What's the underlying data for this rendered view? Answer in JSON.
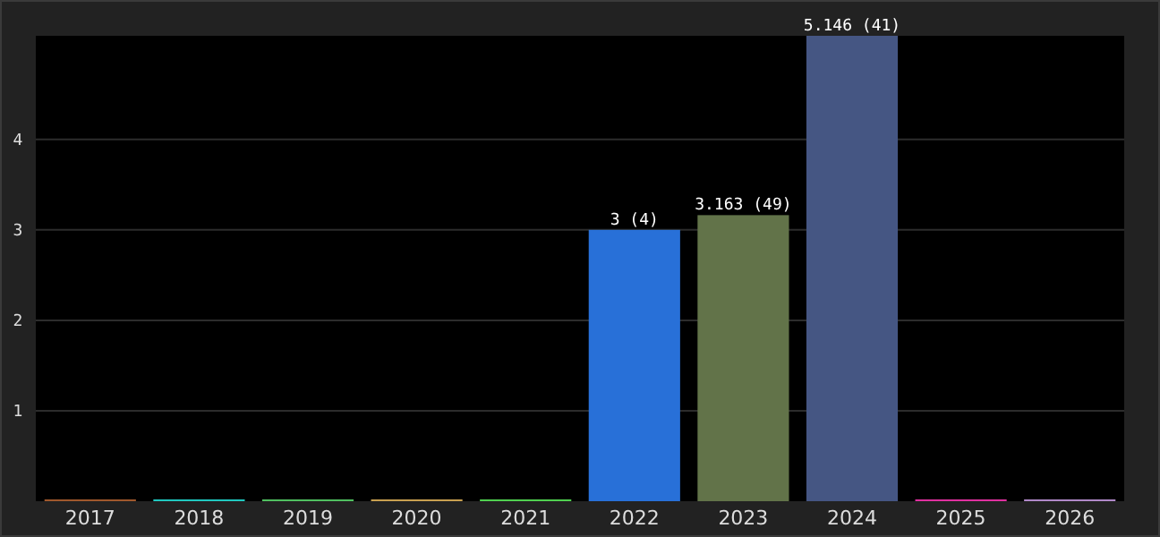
{
  "chart_data": {
    "type": "bar",
    "categories": [
      "2017",
      "2018",
      "2019",
      "2020",
      "2021",
      "2022",
      "2023",
      "2024",
      "2025",
      "2026"
    ],
    "values": [
      0.02,
      0.02,
      0.02,
      0.02,
      0.02,
      3,
      3.163,
      5.146,
      0.02,
      0.02
    ],
    "colors": [
      "#a0582c",
      "#20c8c0",
      "#50c060",
      "#c8a050",
      "#50d050",
      "#2870d8",
      "#627349",
      "#455683",
      "#e030a0",
      "#b088c8"
    ],
    "value_labels": [
      null,
      null,
      null,
      null,
      null,
      "3 (4)",
      "3.163 (49)",
      "5.146 (41)",
      null,
      null
    ],
    "ylim": [
      0,
      5.146
    ],
    "yticks": [
      1,
      2,
      3,
      4
    ],
    "grid": "y"
  }
}
